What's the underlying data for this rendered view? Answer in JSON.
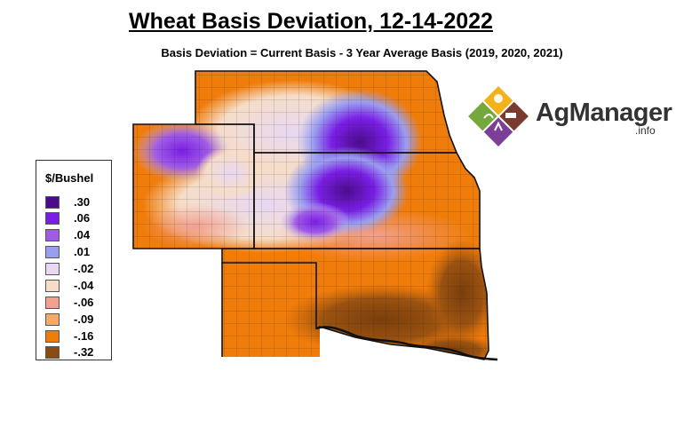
{
  "title": "Wheat Basis Deviation, 12-14-2022",
  "subtitle": "Basis Deviation = Current Basis - 3 Year Average Basis (2019, 2020, 2021)",
  "legend": {
    "title": "$/Bushel",
    "items": [
      {
        "label": ".30",
        "color": "#4b0c8a"
      },
      {
        "label": ".06",
        "color": "#7a1ee6"
      },
      {
        "label": ".04",
        "color": "#a05ce6"
      },
      {
        "label": ".01",
        "color": "#9a9ef0"
      },
      {
        "label": "-.02",
        "color": "#e8d8f4"
      },
      {
        "label": "-.04",
        "color": "#f6ddc8"
      },
      {
        "label": "-.06",
        "color": "#f2a090"
      },
      {
        "label": "-.09",
        "color": "#f5aa66"
      },
      {
        "label": "-.16",
        "color": "#f07c0a"
      },
      {
        "label": "-.32",
        "color": "#8a4a10"
      }
    ]
  },
  "logo": {
    "name": "AgManager",
    "suffix": ".info",
    "colors": [
      "#f2b21c",
      "#7c3f98",
      "#74a83c",
      "#7a3b2e"
    ]
  },
  "map": {
    "regions": [
      "Nebraska",
      "Colorado",
      "Kansas",
      "Oklahoma"
    ]
  }
}
